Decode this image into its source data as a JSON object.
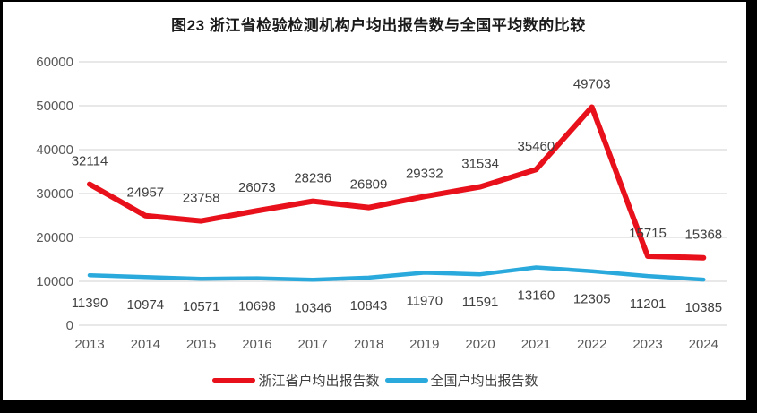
{
  "title": "图23  浙江省检验检测机构户均出报告数与全国平均数的比较",
  "colors": {
    "zhejiang_line": "#e8111b",
    "national_line": "#29a9dc",
    "gridline": "#d9d9d9",
    "axis_label": "#595959",
    "data_label": "#404040",
    "frame": "#000000",
    "background": "#ffffff"
  },
  "chart_data": {
    "type": "line",
    "title": "图23  浙江省检验检测机构户均出报告数与全国平均数的比较",
    "categories": [
      "2013",
      "2014",
      "2015",
      "2016",
      "2017",
      "2018",
      "2019",
      "2020",
      "2021",
      "2022",
      "2023",
      "2024"
    ],
    "series": [
      {
        "name": "浙江省户均出报告数",
        "color": "#e8111b",
        "values": [
          32114,
          24957,
          23758,
          26073,
          28236,
          26809,
          29332,
          31534,
          35460,
          49703,
          15715,
          15368
        ],
        "label_position": "above"
      },
      {
        "name": "全国户均出报告数",
        "color": "#29a9dc",
        "values": [
          11390,
          10974,
          10571,
          10698,
          10346,
          10843,
          11970,
          11591,
          13160,
          12305,
          11201,
          10385
        ],
        "label_position": "below"
      }
    ],
    "xlabel": "",
    "ylabel": "",
    "ylim": [
      0,
      60000
    ],
    "ytick_step": 10000,
    "grid": true,
    "legend_position": "bottom"
  }
}
